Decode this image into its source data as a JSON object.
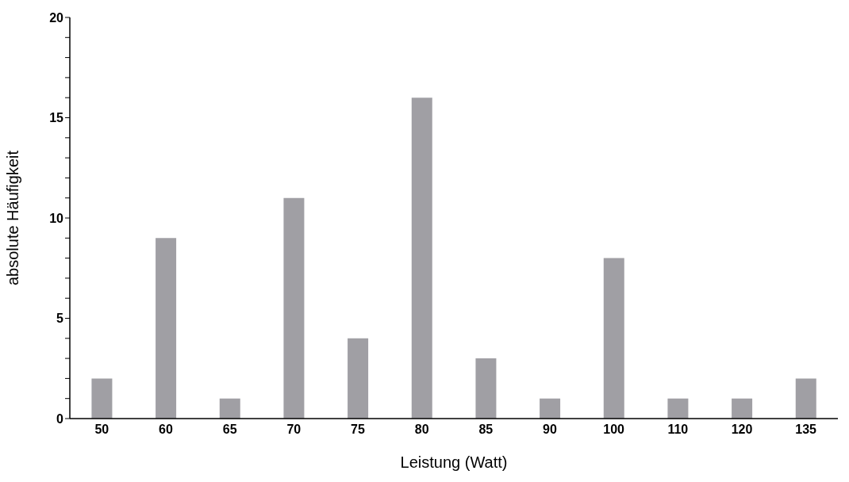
{
  "chart_data": {
    "type": "bar",
    "xlabel": "Leistung (Watt)",
    "ylabel": "absolute Häufigkeit",
    "categories": [
      "50",
      "60",
      "65",
      "70",
      "75",
      "80",
      "85",
      "90",
      "100",
      "110",
      "120",
      "135"
    ],
    "values": [
      2,
      9,
      1,
      11,
      4,
      16,
      3,
      1,
      8,
      1,
      1,
      2
    ],
    "color": "#a09fa4",
    "ylim": [
      0,
      20
    ],
    "yticks": [
      0,
      {
        "value": 1,
        "label": null
      },
      {
        "value": 2,
        "label": null
      },
      {
        "value": 3,
        "label": null
      },
      {
        "value": 4,
        "label": null
      },
      5,
      {
        "value": 6,
        "label": null
      },
      {
        "value": 7,
        "label": null
      },
      {
        "value": 8,
        "label": null
      },
      {
        "value": 9,
        "label": null
      },
      10,
      {
        "value": 11,
        "label": null
      },
      {
        "value": 12,
        "label": null
      },
      {
        "value": 13,
        "label": null
      },
      {
        "value": 14,
        "label": null
      },
      15,
      {
        "value": 16,
        "label": null
      },
      {
        "value": 17,
        "label": null
      },
      {
        "value": 18,
        "label": null
      },
      {
        "value": 19,
        "label": null
      },
      20
    ],
    "grid": false,
    "legend": false
  }
}
